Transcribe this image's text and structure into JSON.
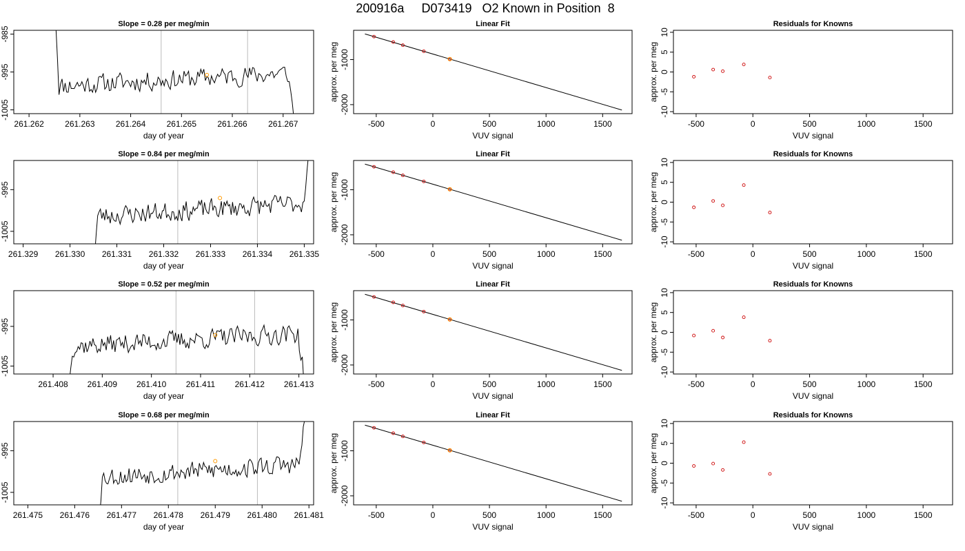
{
  "figure_title": "200916a     D073419   O2 Known in Position  8",
  "colors": {
    "trace": "#000000",
    "knowns": "#cc0000",
    "unknown": "#ff9900",
    "marker_line": "#bbbbbb"
  },
  "chart_data": [
    {
      "row": 1,
      "type": "line",
      "title": "Slope =  0.28  per meg/min",
      "xlabel": "day of year",
      "ylabel": "approx. per meg",
      "xlim": [
        261.2617,
        261.2676
      ],
      "ylim": [
        -1006,
        -984
      ],
      "xticks": [
        "261.262",
        "261.263",
        "261.264",
        "261.265",
        "261.266",
        "261.267"
      ],
      "xtick_values": [
        261.262,
        261.263,
        261.264,
        261.265,
        261.266,
        261.267
      ],
      "yticks": [
        "-1005",
        "-995",
        "-985"
      ],
      "ytick_values": [
        -1005,
        -995,
        -985
      ],
      "trace_start": 261.2625,
      "trace_end": 261.2672,
      "trace_step": 3e-05,
      "vlines": [
        261.2646,
        261.2663
      ],
      "highlight": {
        "x": 261.2655,
        "y": -995.8
      },
      "seed": 11
    },
    {
      "type": "line",
      "title": "Linear Fit",
      "xlabel": "VUV signal",
      "ylabel": "approx. per meg",
      "xlim": [
        -700,
        1760
      ],
      "ylim": [
        -2200,
        -350
      ],
      "xticks": [
        "-500",
        "0",
        "500",
        "1000",
        "1500"
      ],
      "xtick_values": [
        -500,
        0,
        500,
        1000,
        1500
      ],
      "yticks": [
        "-1000",
        "-2000"
      ],
      "ytick_values": [
        -1000,
        -2000
      ],
      "fit_line": {
        "x": [
          -600,
          1670
        ],
        "y": [
          -430,
          -2120
        ]
      },
      "points": {
        "x": [
          -520,
          -350,
          -265,
          -80,
          150
        ],
        "y": [
          -490,
          -610,
          -680,
          -815,
          -990
        ]
      },
      "unknown_point": {
        "x": 150,
        "y": -990
      }
    },
    {
      "type": "scatter",
      "title": "Residuals for Knowns",
      "xlabel": "VUV signal",
      "ylabel": "approx. per meg",
      "xlim": [
        -700,
        1760
      ],
      "ylim": [
        -10.5,
        10.5
      ],
      "xticks": [
        "-500",
        "0",
        "500",
        "1000",
        "1500"
      ],
      "xtick_values": [
        -500,
        0,
        500,
        1000,
        1500
      ],
      "yticks": [
        "-10",
        "-5",
        "0",
        "5",
        "10"
      ],
      "ytick_values": [
        -10,
        -5,
        0,
        5,
        10
      ],
      "points": {
        "x": [
          -520,
          -350,
          -265,
          -80,
          150
        ],
        "y": [
          -1.2,
          0.6,
          0.2,
          1.9,
          -1.4
        ]
      }
    },
    {
      "row": 2,
      "type": "line",
      "title": "Slope =  0.84  per meg/min",
      "xlabel": "day of year",
      "ylabel": "approx. per meg",
      "xlim": [
        261.3288,
        261.3352
      ],
      "ylim": [
        -1008,
        -988
      ],
      "xticks": [
        "261.329",
        "261.330",
        "261.331",
        "261.332",
        "261.333",
        "261.334",
        "261.335"
      ],
      "xtick_values": [
        261.329,
        261.33,
        261.331,
        261.332,
        261.333,
        261.334,
        261.335
      ],
      "yticks": [
        "-1005",
        "-995"
      ],
      "ytick_values": [
        -1005,
        -995
      ],
      "trace_start": 261.3305,
      "trace_end": 261.3351,
      "trace_step": 3e-05,
      "vlines": [
        261.3323,
        261.334
      ],
      "highlight": {
        "x": 261.3332,
        "y": -997.0
      },
      "seed": 23
    },
    {
      "type": "line",
      "title": "Linear Fit",
      "xlabel": "VUV signal",
      "ylabel": "approx. per meg",
      "xlim": [
        -700,
        1760
      ],
      "ylim": [
        -2200,
        -350
      ],
      "xticks": [
        "-500",
        "0",
        "500",
        "1000",
        "1500"
      ],
      "xtick_values": [
        -500,
        0,
        500,
        1000,
        1500
      ],
      "yticks": [
        "-1000",
        "-2000"
      ],
      "ytick_values": [
        -1000,
        -2000
      ],
      "fit_line": {
        "x": [
          -600,
          1670
        ],
        "y": [
          -430,
          -2120
        ]
      },
      "points": {
        "x": [
          -520,
          -350,
          -265,
          -80,
          150
        ],
        "y": [
          -490,
          -610,
          -680,
          -815,
          -990
        ]
      },
      "unknown_point": {
        "x": 150,
        "y": -990
      }
    },
    {
      "type": "scatter",
      "title": "Residuals for Knowns",
      "xlabel": "VUV signal",
      "ylabel": "approx. per meg",
      "xlim": [
        -700,
        1760
      ],
      "ylim": [
        -10.5,
        10.5
      ],
      "xticks": [
        "-500",
        "0",
        "500",
        "1000",
        "1500"
      ],
      "xtick_values": [
        -500,
        0,
        500,
        1000,
        1500
      ],
      "yticks": [
        "-10",
        "-5",
        "0",
        "5",
        "10"
      ],
      "ytick_values": [
        -10,
        -5,
        0,
        5,
        10
      ],
      "points": {
        "x": [
          -520,
          -350,
          -265,
          -80,
          150
        ],
        "y": [
          -1.3,
          0.3,
          -0.8,
          4.3,
          -2.6
        ]
      }
    },
    {
      "row": 3,
      "type": "line",
      "title": "Slope =  0.52  per meg/min",
      "xlabel": "day of year",
      "ylabel": "approx. per meg",
      "xlim": [
        261.4072,
        261.4133
      ],
      "ylim": [
        -1007,
        -986
      ],
      "xticks": [
        "261.408",
        "261.409",
        "261.410",
        "261.411",
        "261.412",
        "261.413"
      ],
      "xtick_values": [
        261.408,
        261.409,
        261.41,
        261.411,
        261.412,
        261.413
      ],
      "yticks": [
        "-1005",
        "-995"
      ],
      "ytick_values": [
        -1005,
        -995
      ],
      "trace_start": 261.4083,
      "trace_end": 261.4131,
      "trace_step": 3e-05,
      "vlines": [
        261.4105,
        261.4121
      ],
      "highlight": {
        "x": 261.4113,
        "y": -997.2
      },
      "seed": 37
    },
    {
      "type": "line",
      "title": "Linear Fit",
      "xlabel": "VUV signal",
      "ylabel": "approx. per meg",
      "xlim": [
        -700,
        1760
      ],
      "ylim": [
        -2200,
        -350
      ],
      "xticks": [
        "-500",
        "0",
        "500",
        "1000",
        "1500"
      ],
      "xtick_values": [
        -500,
        0,
        500,
        1000,
        1500
      ],
      "yticks": [
        "-1000",
        "-2000"
      ],
      "ytick_values": [
        -1000,
        -2000
      ],
      "fit_line": {
        "x": [
          -600,
          1670
        ],
        "y": [
          -430,
          -2120
        ]
      },
      "points": {
        "x": [
          -520,
          -350,
          -265,
          -80,
          150
        ],
        "y": [
          -490,
          -610,
          -680,
          -815,
          -990
        ]
      },
      "unknown_point": {
        "x": 150,
        "y": -990
      }
    },
    {
      "type": "scatter",
      "title": "Residuals for Knowns",
      "xlabel": "VUV signal",
      "ylabel": "approx. per meg",
      "xlim": [
        -700,
        1760
      ],
      "ylim": [
        -10.5,
        10.5
      ],
      "xticks": [
        "-500",
        "0",
        "500",
        "1000",
        "1500"
      ],
      "xtick_values": [
        -500,
        0,
        500,
        1000,
        1500
      ],
      "yticks": [
        "-10",
        "-5",
        "0",
        "5",
        "10"
      ],
      "ytick_values": [
        -10,
        -5,
        0,
        5,
        10
      ],
      "points": {
        "x": [
          -520,
          -350,
          -265,
          -80,
          150
        ],
        "y": [
          -0.8,
          0.4,
          -1.3,
          3.8,
          -2.1
        ]
      }
    },
    {
      "row": 4,
      "type": "line",
      "title": "Slope =  0.68  per meg/min",
      "xlabel": "day of year",
      "ylabel": "approx. per meg",
      "xlim": [
        261.4747,
        261.4811
      ],
      "ylim": [
        -1008,
        -988
      ],
      "xticks": [
        "261.475",
        "261.476",
        "261.477",
        "261.478",
        "261.479",
        "261.480",
        "261.481"
      ],
      "xtick_values": [
        261.475,
        261.476,
        261.477,
        261.478,
        261.479,
        261.48,
        261.481
      ],
      "yticks": [
        "-1005",
        "-995"
      ],
      "ytick_values": [
        -1005,
        -995
      ],
      "trace_start": 261.4765,
      "trace_end": 261.4809,
      "trace_step": 3e-05,
      "vlines": [
        261.4782,
        261.4799
      ],
      "highlight": {
        "x": 261.479,
        "y": -997.5
      },
      "seed": 53
    },
    {
      "type": "line",
      "title": "Linear Fit",
      "xlabel": "VUV signal",
      "ylabel": "approx. per meg",
      "xlim": [
        -700,
        1760
      ],
      "ylim": [
        -2200,
        -350
      ],
      "xticks": [
        "-500",
        "0",
        "500",
        "1000",
        "1500"
      ],
      "xtick_values": [
        -500,
        0,
        500,
        1000,
        1500
      ],
      "yticks": [
        "-1000",
        "-2000"
      ],
      "ytick_values": [
        -1000,
        -2000
      ],
      "fit_line": {
        "x": [
          -600,
          1670
        ],
        "y": [
          -430,
          -2120
        ]
      },
      "points": {
        "x": [
          -520,
          -350,
          -265,
          -80,
          150
        ],
        "y": [
          -490,
          -610,
          -680,
          -815,
          -990
        ]
      },
      "unknown_point": {
        "x": 150,
        "y": -990
      }
    },
    {
      "type": "scatter",
      "title": "Residuals for Knowns",
      "xlabel": "VUV signal",
      "ylabel": "approx. per meg",
      "xlim": [
        -700,
        1760
      ],
      "ylim": [
        -10.5,
        10.5
      ],
      "xticks": [
        "-500",
        "0",
        "500",
        "1000",
        "1500"
      ],
      "xtick_values": [
        -500,
        0,
        500,
        1000,
        1500
      ],
      "yticks": [
        "-10",
        "-5",
        "0",
        "5",
        "10"
      ],
      "ytick_values": [
        -10,
        -5,
        0,
        5,
        10
      ],
      "points": {
        "x": [
          -520,
          -350,
          -265,
          -80,
          150
        ],
        "y": [
          -0.7,
          -0.1,
          -1.7,
          5.3,
          -2.7
        ]
      }
    }
  ]
}
